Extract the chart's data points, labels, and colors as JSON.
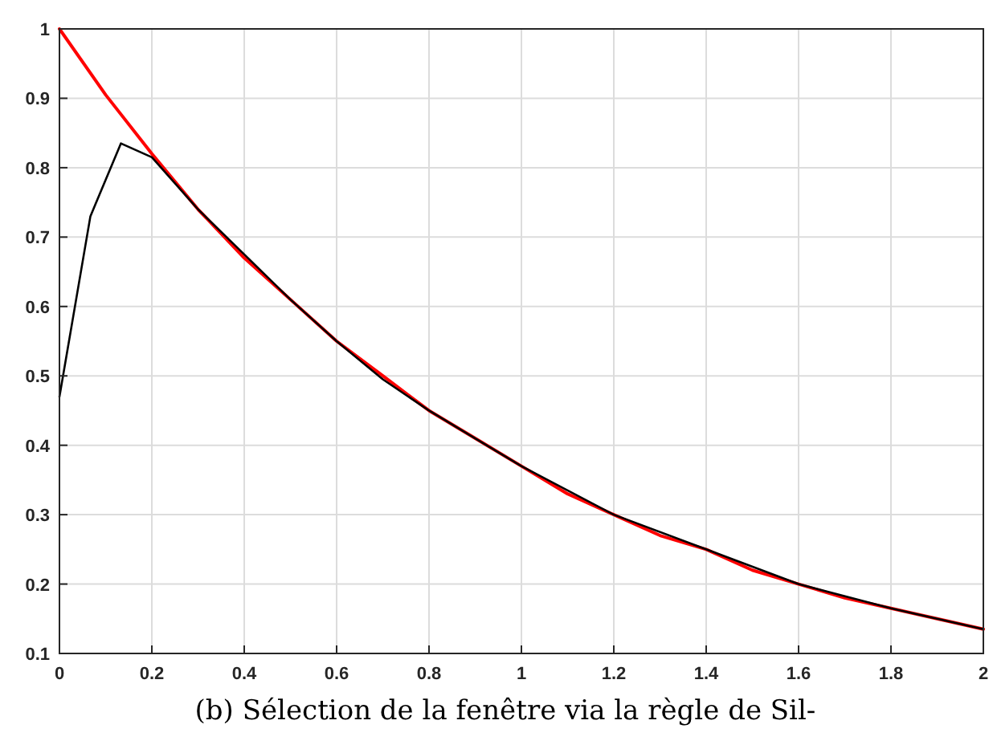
{
  "chart_data": {
    "type": "line",
    "annotations": [
      "(b) Sélection de la fenêtre via la règle de Sil-"
    ],
    "xlim": [
      0,
      2
    ],
    "ylim": [
      0.1,
      1
    ],
    "xticks": [
      0,
      0.2,
      0.4,
      0.6,
      0.8,
      1,
      1.2,
      1.4,
      1.6,
      1.8,
      2
    ],
    "yticks": [
      0.1,
      0.2,
      0.3,
      0.4,
      0.5,
      0.6,
      0.7,
      0.8,
      0.9,
      1
    ],
    "grid": true,
    "marker": "none",
    "line_style": "solid",
    "series": [
      {
        "color": "#ff0000",
        "x": [
          0,
          0.1,
          0.2,
          0.3,
          0.4,
          0.5,
          0.6,
          0.7,
          0.8,
          0.9,
          1,
          1.1,
          1.2,
          1.3,
          1.4,
          1.5,
          1.6,
          1.7,
          1.8,
          1.9,
          2
        ],
        "values": [
          1,
          0.905,
          0.82,
          0.74,
          0.67,
          0.61,
          0.55,
          0.5,
          0.45,
          0.41,
          0.37,
          0.33,
          0.3,
          0.27,
          0.25,
          0.22,
          0.2,
          0.18,
          0.165,
          0.15,
          0.135
        ]
      },
      {
        "color": "#000000",
        "x": [
          0,
          0.067,
          0.133,
          0.2,
          0.3,
          0.4,
          0.5,
          0.6,
          0.7,
          0.8,
          0.9,
          1,
          1.2,
          1.4,
          1.6,
          1.8,
          2
        ],
        "values": [
          0.47,
          0.73,
          0.835,
          0.815,
          0.74,
          0.675,
          0.61,
          0.55,
          0.495,
          0.45,
          0.41,
          0.37,
          0.3,
          0.25,
          0.2,
          0.165,
          0.135
        ]
      }
    ]
  }
}
